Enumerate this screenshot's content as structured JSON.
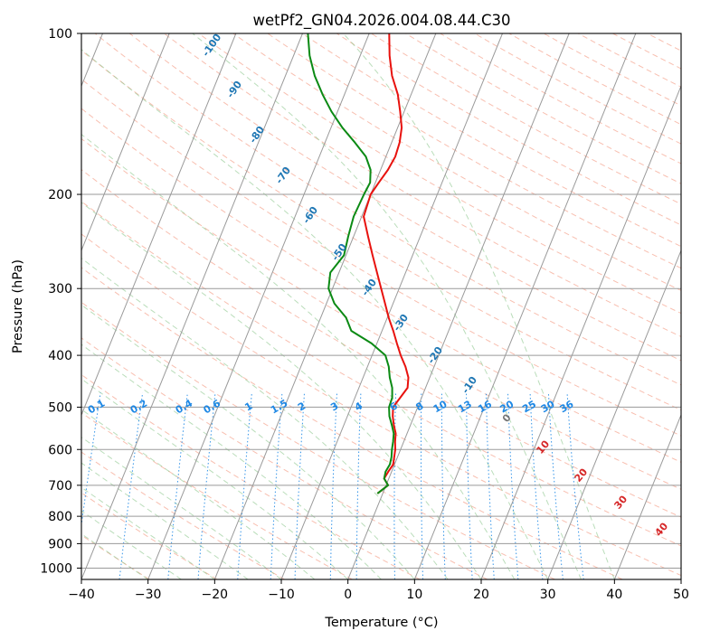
{
  "chart_data": {
    "type": "line",
    "title": "wetPf2_GN04.2026.004.08.44.C30",
    "xlabel": "Temperature (°C)",
    "ylabel": "Pressure (hPa)",
    "xlim": [
      -40,
      50
    ],
    "ylim": [
      1050,
      100
    ],
    "x_ticks": [
      -40,
      -30,
      -20,
      -10,
      0,
      10,
      20,
      30,
      40,
      50
    ],
    "y_ticks": [
      1000,
      900,
      800,
      700,
      600,
      500,
      400,
      300,
      200,
      100
    ],
    "skew_deg_per_decade": 32.5,
    "series": [
      {
        "name": "temperature",
        "color": "#e8120e",
        "points": [
          [
            725,
            -0.8
          ],
          [
            700,
            0.3
          ],
          [
            680,
            -0.7
          ],
          [
            660,
            -0.5
          ],
          [
            640,
            -0.2
          ],
          [
            620,
            -0.5
          ],
          [
            600,
            -0.8
          ],
          [
            580,
            -1.3
          ],
          [
            560,
            -1.7
          ],
          [
            540,
            -2.5
          ],
          [
            520,
            -3.2
          ],
          [
            500,
            -3.7
          ],
          [
            480,
            -3.2
          ],
          [
            460,
            -2.7
          ],
          [
            440,
            -3.2
          ],
          [
            420,
            -4.3
          ],
          [
            400,
            -5.7
          ],
          [
            380,
            -7.0
          ],
          [
            360,
            -8.3
          ],
          [
            340,
            -9.8
          ],
          [
            320,
            -11.2
          ],
          [
            300,
            -12.7
          ],
          [
            280,
            -14.3
          ],
          [
            260,
            -16.0
          ],
          [
            240,
            -17.8
          ],
          [
            220,
            -19.7
          ],
          [
            200,
            -20.0
          ],
          [
            190,
            -19.5
          ],
          [
            180,
            -18.9
          ],
          [
            170,
            -18.6
          ],
          [
            160,
            -18.8
          ],
          [
            150,
            -19.4
          ],
          [
            140,
            -20.6
          ],
          [
            130,
            -22.0
          ],
          [
            120,
            -24.0
          ],
          [
            110,
            -25.6
          ],
          [
            100,
            -27.0
          ]
        ]
      },
      {
        "name": "dewpoint",
        "color": "#0b8a14",
        "points": [
          [
            725,
            -0.8
          ],
          [
            700,
            0.3
          ],
          [
            680,
            -0.7
          ],
          [
            660,
            -0.9
          ],
          [
            640,
            -0.7
          ],
          [
            620,
            -0.9
          ],
          [
            600,
            -1.3
          ],
          [
            580,
            -1.6
          ],
          [
            560,
            -2.0
          ],
          [
            540,
            -2.8
          ],
          [
            520,
            -3.7
          ],
          [
            500,
            -4.3
          ],
          [
            480,
            -4.4
          ],
          [
            460,
            -5.0
          ],
          [
            440,
            -6.0
          ],
          [
            420,
            -6.8
          ],
          [
            400,
            -8.0
          ],
          [
            380,
            -10.8
          ],
          [
            360,
            -14.6
          ],
          [
            340,
            -16.2
          ],
          [
            320,
            -18.8
          ],
          [
            300,
            -20.6
          ],
          [
            280,
            -21.3
          ],
          [
            260,
            -20.3
          ],
          [
            240,
            -20.8
          ],
          [
            220,
            -21.2
          ],
          [
            200,
            -21.0
          ],
          [
            190,
            -20.8
          ],
          [
            180,
            -21.5
          ],
          [
            170,
            -23.0
          ],
          [
            160,
            -25.5
          ],
          [
            150,
            -28.3
          ],
          [
            140,
            -30.9
          ],
          [
            130,
            -33.3
          ],
          [
            120,
            -35.6
          ],
          [
            110,
            -37.6
          ],
          [
            100,
            -39.2
          ]
        ]
      }
    ],
    "isotherm_temps": [
      -120,
      -110,
      -100,
      -90,
      -80,
      -70,
      -60,
      -50,
      -40,
      -30,
      -20,
      -10,
      0,
      10,
      20,
      30,
      40,
      50
    ],
    "dry_adiabat_labels": [
      "-100",
      "-90",
      "-80",
      "-70",
      "-60",
      "-50",
      "-40",
      "-30",
      "-20",
      "-10"
    ],
    "moist_adiabat_labels": [
      "0",
      "10",
      "20",
      "30",
      "40"
    ],
    "mixing_ratio_labels": [
      "0.1",
      "0.2",
      "0.4",
      "0.6",
      "1",
      "1.5",
      "2",
      "3",
      "4",
      "6",
      "8",
      "10",
      "13",
      "16",
      "20",
      "25",
      "30",
      "36"
    ],
    "colors": {
      "temperature": "#e8120e",
      "dewpoint": "#0b8a14",
      "dry_adiabat": "#f28b6f",
      "moist_adiabat": "#8cc78c",
      "mixing_ratio": "#1e88e5",
      "isotherm": "#9a9a9a",
      "isobar": "#9a9a9a"
    }
  }
}
